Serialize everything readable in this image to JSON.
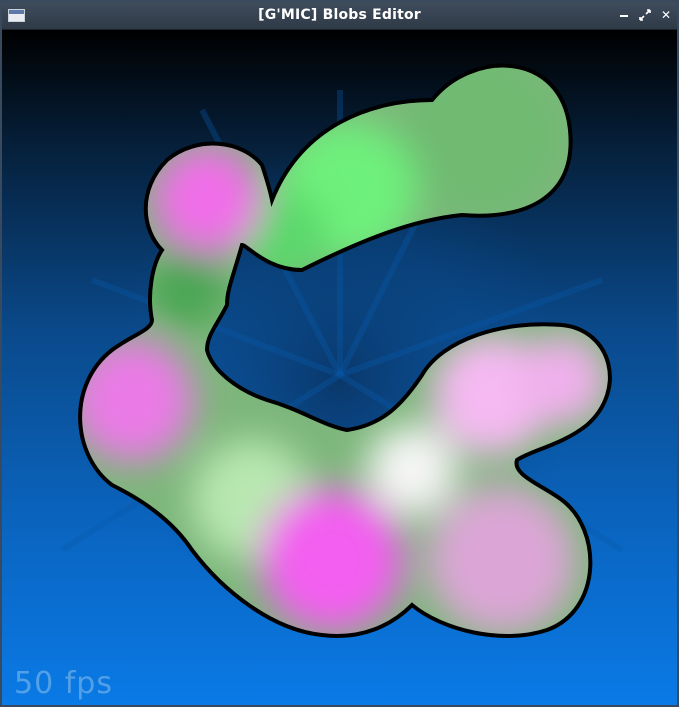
{
  "window": {
    "title": "[G'MIC] Blobs Editor",
    "icon": "app-window-icon",
    "controls": {
      "minimize": "minimize-icon",
      "maximize": "maximize-icon",
      "close_label": "✕"
    }
  },
  "canvas": {
    "background_colors": [
      "#000000",
      "#0a4a8c",
      "#0a7ae6"
    ],
    "blob_outline_color": "#000000",
    "blob_colors": {
      "green": "#6ee07a",
      "dark_green": "#4aa652",
      "magenta": "#f06ee8",
      "pink": "#f3b8ef",
      "mauve": "#d8a0d2",
      "white": "#f2f2f2"
    },
    "fps_label": "50 fps"
  }
}
